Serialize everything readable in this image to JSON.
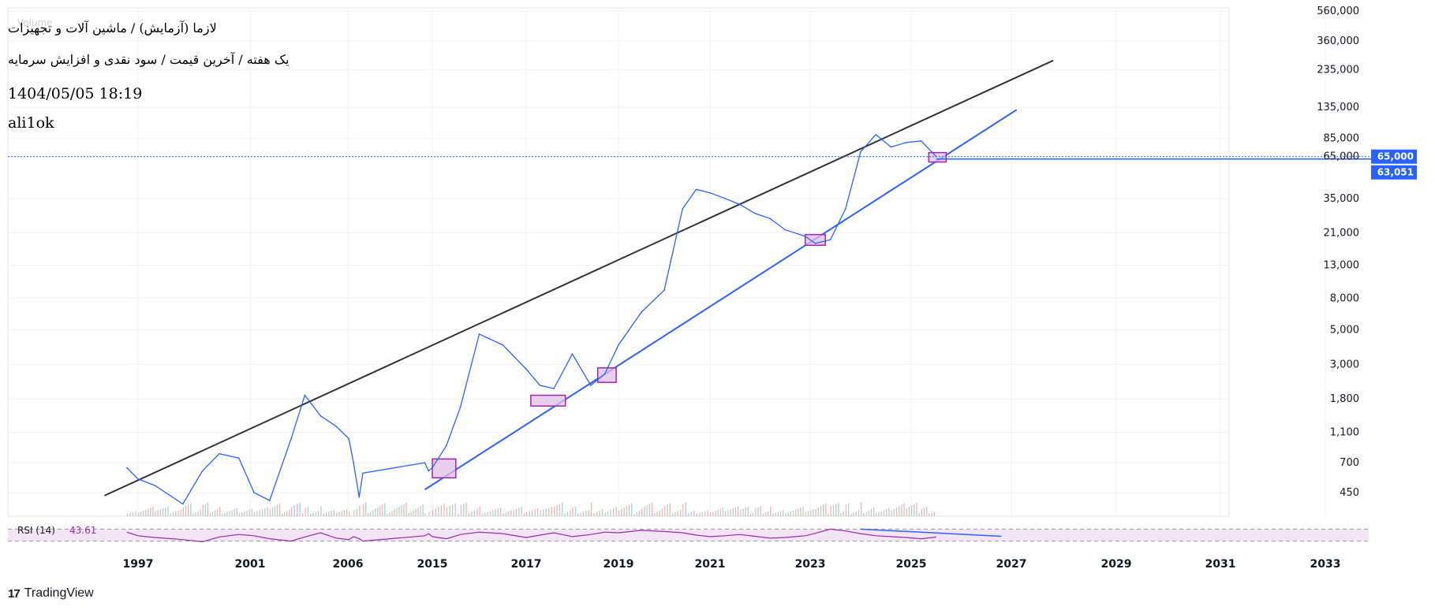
{
  "header": {
    "title": "لازما (آزمایش) / ماشین آلات و تجهیزات",
    "subtitle": "یک هفته / آخرین قیمت / سود نقدی و افزایش سرمایه",
    "date": "1404/05/05 18:19",
    "author": "ali1ok",
    "volume_label": "Volume"
  },
  "footer": {
    "brand": "TradingView",
    "logo_icon": "tradingview-logo-icon"
  },
  "colors": {
    "price_line": "#2962ff",
    "trendline_upper": "#333333",
    "trendline_lower": "#2962ff",
    "highlight_box_fill": "#e1bee7",
    "highlight_box_stroke": "#9c27b0",
    "rsi_line": "#9c27b0",
    "rsi_band": "#f3e5f5",
    "volume_up": "#26a69a",
    "volume_down": "#ef5350",
    "price_tag": "#2962ff"
  },
  "chart_data": {
    "type": "line",
    "scale": "log",
    "title": "لازما (آزمایش) / ماشین آلات و تجهیزات",
    "y_ticks": [
      "560,000",
      "360,000",
      "235,000",
      "135,000",
      "85,000",
      "65,000",
      "35,000",
      "21,000",
      "13,000",
      "8,000",
      "5,000",
      "3,000",
      "1,800",
      "1,100",
      "700",
      "450"
    ],
    "x_ticks": [
      "1997",
      "2001",
      "2006",
      "2015",
      "2017",
      "2019",
      "2021",
      "2023",
      "2025",
      "2027",
      "2029",
      "2031",
      "2033"
    ],
    "last_price": "65,000",
    "last_price_secondary": "63,051",
    "series": [
      {
        "x": [
          1996.6,
          1997.0,
          1997.6,
          1998.6,
          1999.3,
          1999.9,
          2000.6,
          2001.2,
          2002.0,
          2003.1,
          2003.8,
          2004.6,
          2005.4,
          2006.1,
          2006.6,
          2007.2,
          2007.6,
          2014.2,
          2014.6,
          2015.0,
          2015.3,
          2015.6,
          2016.0,
          2016.5,
          2017.0,
          2017.3,
          2017.6,
          2018.0,
          2018.4,
          2018.7,
          2019.0,
          2019.5,
          2020.0,
          2020.4,
          2020.7,
          2021.0,
          2021.3,
          2021.6,
          2021.9,
          2022.2,
          2022.5,
          2022.9,
          2023.1,
          2023.4,
          2023.7,
          2024.0,
          2024.3,
          2024.6,
          2024.9,
          2025.2,
          2025.5
        ],
        "y": [
          650,
          550,
          500,
          380,
          620,
          800,
          750,
          450,
          400,
          1000,
          1900,
          1400,
          1200,
          1000,
          700,
          420,
          600,
          700,
          620,
          650,
          900,
          1600,
          4700,
          4000,
          2800,
          2200,
          2100,
          3500,
          2200,
          2600,
          4000,
          6500,
          9000,
          30000,
          40000,
          38000,
          35000,
          32000,
          28000,
          26000,
          22000,
          20000,
          18000,
          19000,
          30000,
          70000,
          90000,
          75000,
          80000,
          82000,
          65000
        ]
      }
    ],
    "annotations": {
      "upper_trendline": {
        "from": [
          1995.8,
          430
        ],
        "to": [
          2027.8,
          270000
        ]
      },
      "lower_trendline": {
        "from": [
          2014.2,
          470
        ],
        "to": [
          2027.1,
          130000
        ]
      },
      "highlight_boxes": [
        {
          "x0": 2015.0,
          "x1": 2015.5,
          "y0": 560,
          "y1": 740
        },
        {
          "x0": 2017.1,
          "x1": 2017.85,
          "y0": 1620,
          "y1": 1900
        },
        {
          "x0": 2018.55,
          "x1": 2018.95,
          "y0": 2300,
          "y1": 2850
        },
        {
          "x0": 2022.9,
          "x1": 2023.3,
          "y0": 17500,
          "y1": 20500
        },
        {
          "x0": 2025.35,
          "x1": 2025.7,
          "y0": 60000,
          "y1": 69000
        }
      ]
    },
    "rsi": {
      "label": "RSI (14)",
      "value": "43.61",
      "upper_band": 70,
      "lower_band": 30,
      "values": [
        60,
        48,
        42,
        35,
        28,
        44,
        52,
        48,
        38,
        30,
        44,
        58,
        40,
        35,
        45,
        38,
        30,
        48,
        55,
        45,
        38,
        52,
        60,
        55,
        42,
        50,
        58,
        45,
        52,
        60,
        58,
        66,
        62,
        58,
        50,
        45,
        48,
        52,
        46,
        40,
        42,
        48,
        56,
        70,
        64,
        55,
        48,
        45,
        42,
        38,
        43.61
      ]
    }
  }
}
